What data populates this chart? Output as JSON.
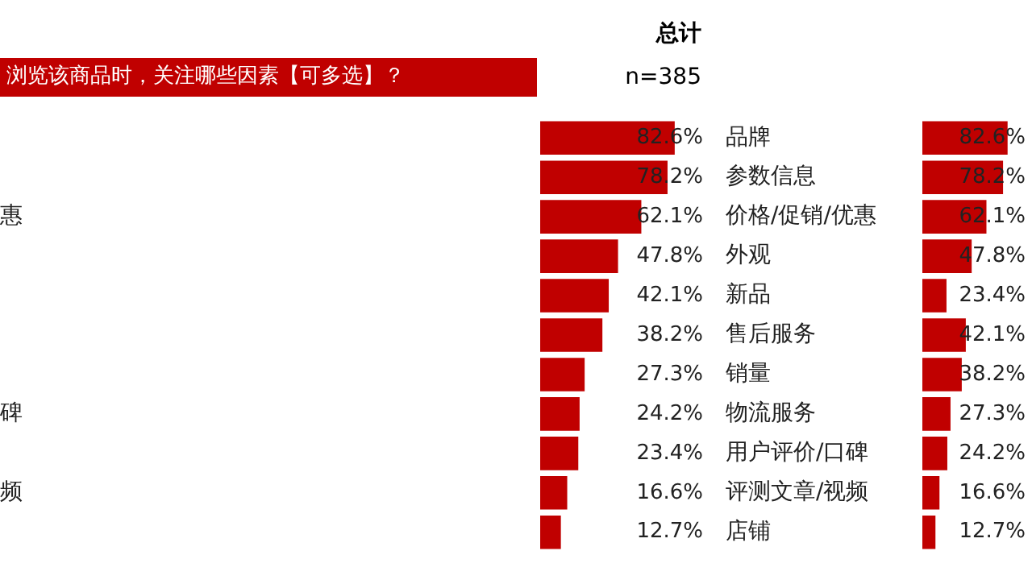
{
  "chart_data": [
    {
      "type": "bar",
      "orientation": "horizontal",
      "title": "浏览该商品时，关注哪些因素【可多选】？",
      "subtitle": "总计",
      "annotations": [
        "n=385"
      ],
      "categories": [
        null,
        null,
        "惠",
        null,
        null,
        null,
        null,
        "碑",
        null,
        "频",
        null
      ],
      "values": [
        82.6,
        78.2,
        62.1,
        47.8,
        42.1,
        38.2,
        27.3,
        24.2,
        23.4,
        16.6,
        12.7
      ],
      "value_labels": [
        "82.6%",
        "78.2%",
        "62.1%",
        "47.8%",
        "42.1%",
        "38.2%",
        "27.3%",
        "24.2%",
        "23.4%",
        "16.6%",
        "12.7%"
      ],
      "color": "#c00000",
      "tick_labels": "y"
    },
    {
      "type": "bar",
      "orientation": "horizontal",
      "categories": [
        "品牌",
        "参数信息",
        "价格/促销/优惠",
        "外观",
        "新品",
        "售后服务",
        "销量",
        "物流服务",
        "用户评价/口碑",
        "评测文章/视频",
        "店铺"
      ],
      "values": [
        82.6,
        78.2,
        62.1,
        47.8,
        23.4,
        42.1,
        38.2,
        27.3,
        24.2,
        16.6,
        12.7
      ],
      "value_labels": [
        "82.6%",
        "78.2%",
        "62.1%",
        "47.8%",
        "23.4%",
        "42.1%",
        "38.2%",
        "27.3%",
        "24.2%",
        "16.6%",
        "12.7%"
      ],
      "color": "#c00000",
      "tick_labels": "y"
    }
  ]
}
